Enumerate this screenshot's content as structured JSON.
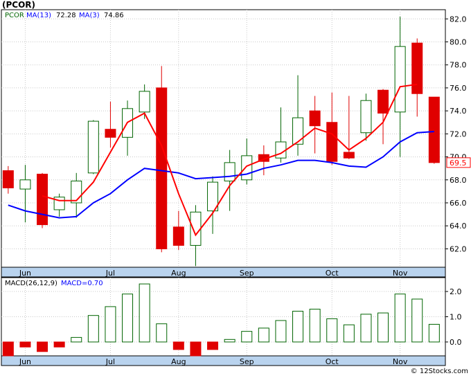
{
  "title": "(PCOR)",
  "footer": "© 12Stocks.com",
  "colors": {
    "up": "#006400",
    "down": "#e00000",
    "ma_fast": "#0000ff",
    "ma_slow": "#ff0000",
    "panel_bg": "#ffffff",
    "axis_band": "#b9d3ee",
    "grid": "#c8c8c8"
  },
  "chart_data": [
    {
      "type": "candlestick",
      "legend": {
        "ticker": "PCOR",
        "ma_fast": "MA(13)",
        "ma_fast_value": "72.28",
        "ma_slow": "MA(3)",
        "ma_slow_value": "74.86"
      },
      "x_labels": [
        "Jun",
        "Jul",
        "Aug",
        "Sep",
        "Oct",
        "Nov"
      ],
      "y_ticks": [
        "62.0",
        "64.0",
        "66.0",
        "68.0",
        "70.0",
        "72.0",
        "74.0",
        "76.0",
        "78.0",
        "80.0",
        "82.0"
      ],
      "ylim": [
        60.4,
        82.8
      ],
      "last_price_label": "69.5",
      "candles": [
        {
          "x": 0.4,
          "o": 68.8,
          "h": 69.2,
          "l": 66.8,
          "c": 67.3
        },
        {
          "x": 1.4,
          "o": 67.2,
          "h": 69.3,
          "l": 64.3,
          "c": 68.0
        },
        {
          "x": 2.4,
          "o": 68.5,
          "h": 68.6,
          "l": 63.8,
          "c": 64.1
        },
        {
          "x": 3.4,
          "o": 65.4,
          "h": 66.8,
          "l": 64.8,
          "c": 66.5
        },
        {
          "x": 4.4,
          "o": 66.0,
          "h": 68.6,
          "l": 64.7,
          "c": 67.9
        },
        {
          "x": 5.4,
          "o": 68.6,
          "h": 73.2,
          "l": 68.5,
          "c": 73.1
        },
        {
          "x": 6.4,
          "o": 72.4,
          "h": 74.8,
          "l": 70.8,
          "c": 71.7
        },
        {
          "x": 7.4,
          "o": 71.7,
          "h": 74.9,
          "l": 70.1,
          "c": 74.2
        },
        {
          "x": 8.4,
          "o": 73.9,
          "h": 76.3,
          "l": 73.3,
          "c": 75.7
        },
        {
          "x": 9.4,
          "o": 76.0,
          "h": 77.9,
          "l": 61.7,
          "c": 62.0
        },
        {
          "x": 10.4,
          "o": 63.9,
          "h": 65.3,
          "l": 61.9,
          "c": 62.3
        },
        {
          "x": 11.4,
          "o": 62.3,
          "h": 65.8,
          "l": 60.5,
          "c": 65.2
        },
        {
          "x": 12.4,
          "o": 65.3,
          "h": 68.3,
          "l": 63.3,
          "c": 67.8
        },
        {
          "x": 13.4,
          "o": 67.9,
          "h": 70.6,
          "l": 65.3,
          "c": 69.5
        },
        {
          "x": 14.4,
          "o": 68.0,
          "h": 71.6,
          "l": 67.6,
          "c": 70.1
        },
        {
          "x": 15.4,
          "o": 70.2,
          "h": 71.0,
          "l": 68.4,
          "c": 69.6
        },
        {
          "x": 16.4,
          "o": 69.9,
          "h": 74.3,
          "l": 69.5,
          "c": 71.3
        },
        {
          "x": 17.4,
          "o": 71.1,
          "h": 77.1,
          "l": 70.1,
          "c": 73.4
        },
        {
          "x": 18.4,
          "o": 74.0,
          "h": 75.3,
          "l": 70.3,
          "c": 72.7
        },
        {
          "x": 19.4,
          "o": 73.0,
          "h": 75.6,
          "l": 69.3,
          "c": 69.6
        },
        {
          "x": 20.4,
          "o": 70.4,
          "h": 75.3,
          "l": 69.8,
          "c": 69.9
        },
        {
          "x": 21.4,
          "o": 72.1,
          "h": 75.5,
          "l": 71.4,
          "c": 74.9
        },
        {
          "x": 22.4,
          "o": 75.8,
          "h": 75.9,
          "l": 71.1,
          "c": 73.8
        },
        {
          "x": 23.4,
          "o": 73.9,
          "h": 82.2,
          "l": 70.0,
          "c": 79.6
        },
        {
          "x": 24.4,
          "o": 79.9,
          "h": 80.3,
          "l": 73.5,
          "c": 75.5
        },
        {
          "x": 25.4,
          "o": 75.2,
          "h": 75.2,
          "l": 69.4,
          "c": 69.5
        }
      ],
      "ma_fast_line": [
        [
          0.4,
          65.8
        ],
        [
          1.4,
          65.3
        ],
        [
          2.4,
          65.0
        ],
        [
          3.4,
          64.7
        ],
        [
          4.4,
          64.8
        ],
        [
          5.4,
          66.0
        ],
        [
          6.4,
          66.8
        ],
        [
          7.4,
          68.0
        ],
        [
          8.4,
          69.0
        ],
        [
          9.4,
          68.8
        ],
        [
          10.4,
          68.6
        ],
        [
          11.4,
          68.1
        ],
        [
          12.4,
          68.2
        ],
        [
          13.4,
          68.3
        ],
        [
          14.4,
          68.5
        ],
        [
          15.4,
          69.0
        ],
        [
          16.4,
          69.3
        ],
        [
          17.4,
          69.7
        ],
        [
          18.4,
          69.7
        ],
        [
          19.4,
          69.5
        ],
        [
          20.4,
          69.2
        ],
        [
          21.4,
          69.1
        ],
        [
          22.4,
          70.0
        ],
        [
          23.4,
          71.3
        ],
        [
          24.4,
          72.1
        ],
        [
          25.4,
          72.2
        ]
      ],
      "ma_slow_line": [
        [
          2.4,
          66.6
        ],
        [
          3.4,
          66.2
        ],
        [
          4.4,
          66.2
        ],
        [
          5.4,
          67.8
        ],
        [
          6.4,
          70.4
        ],
        [
          7.4,
          73.0
        ],
        [
          8.4,
          73.8
        ],
        [
          9.4,
          71.0
        ],
        [
          10.4,
          66.8
        ],
        [
          11.4,
          63.2
        ],
        [
          12.4,
          65.1
        ],
        [
          13.4,
          67.5
        ],
        [
          14.4,
          69.2
        ],
        [
          15.4,
          69.8
        ],
        [
          16.4,
          70.3
        ],
        [
          17.4,
          71.3
        ],
        [
          18.4,
          72.5
        ],
        [
          19.4,
          72.0
        ],
        [
          20.4,
          70.6
        ],
        [
          21.4,
          71.6
        ],
        [
          22.4,
          73.0
        ],
        [
          23.4,
          76.1
        ],
        [
          24.4,
          76.3
        ]
      ]
    },
    {
      "type": "bar",
      "legend": {
        "name": "MACD(26,12,9)",
        "value_label": "MACD=0.70"
      },
      "x_labels": [
        "Jun",
        "Jul",
        "Aug",
        "Sep",
        "Oct",
        "Nov"
      ],
      "y_ticks": [
        "0.0",
        "1.0",
        "2.0"
      ],
      "ylim": [
        -0.55,
        2.55
      ],
      "x": [
        0.4,
        1.4,
        2.4,
        3.4,
        4.4,
        5.4,
        6.4,
        7.4,
        8.4,
        9.4,
        10.4,
        11.4,
        12.4,
        13.4,
        14.4,
        15.4,
        16.4,
        17.4,
        18.4,
        19.4,
        20.4,
        21.4,
        22.4,
        23.4,
        24.4,
        25.4
      ],
      "values": [
        -0.55,
        -0.2,
        -0.38,
        -0.2,
        0.18,
        1.05,
        1.4,
        1.9,
        2.3,
        0.72,
        -0.3,
        -0.55,
        -0.3,
        0.1,
        0.42,
        0.55,
        0.85,
        1.22,
        1.3,
        0.92,
        0.68,
        1.1,
        1.15,
        1.9,
        1.7,
        0.7
      ]
    }
  ],
  "x_label_positions": [
    1.4,
    6.4,
    10.4,
    14.4,
    19.4,
    23.4
  ]
}
